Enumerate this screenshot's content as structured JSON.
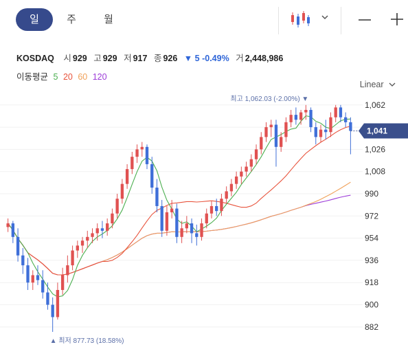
{
  "tabs": [
    {
      "label": "일"
    },
    {
      "label": "주"
    },
    {
      "label": "월"
    }
  ],
  "ticker": {
    "name": "KOSDAQ",
    "open_label": "시",
    "open": "929",
    "high_label": "고",
    "high": "929",
    "low_label": "저",
    "low": "917",
    "close_label": "종",
    "close": "926",
    "change_arrow": "▼",
    "change": "5",
    "change_pct": "-0.49%",
    "volume_label": "거",
    "volume": "2,448,986"
  },
  "moving_average": {
    "label": "이동평균",
    "periods": [
      {
        "label": "5",
        "color": "#4caf50"
      },
      {
        "label": "20",
        "color": "#e8533c"
      },
      {
        "label": "60",
        "color": "#f0a15a"
      },
      {
        "label": "120",
        "color": "#9c3bd8"
      }
    ]
  },
  "scale_label": "Linear",
  "icons": [
    "candlestick-icon",
    "chevron-down-icon",
    "minus-icon",
    "plus-icon"
  ],
  "chart_data": {
    "type": "candlestick",
    "y_ticks": [
      1062,
      1044,
      1026,
      1008,
      990,
      972,
      954,
      936,
      918,
      900,
      882
    ],
    "ylim": [
      873,
      1068
    ],
    "current_price_label": "1,041",
    "max_annotation": {
      "prefix": "최고",
      "value": "1,062.03",
      "pct": "(-2.00%)",
      "arrow": "▼"
    },
    "min_annotation": {
      "prefix": "최저",
      "value": "877.73",
      "pct": "(18.58%)",
      "arrow": "▲"
    },
    "up_color": "#e05151",
    "down_color": "#3f6fd8",
    "candles": [
      [
        963,
        970,
        959,
        966
      ],
      [
        966,
        968,
        950,
        955
      ],
      [
        955,
        962,
        935,
        940
      ],
      [
        940,
        946,
        925,
        932
      ],
      [
        932,
        938,
        912,
        918
      ],
      [
        918,
        928,
        912,
        924
      ],
      [
        924,
        932,
        916,
        920
      ],
      [
        920,
        928,
        905,
        910
      ],
      [
        910,
        918,
        896,
        900
      ],
      [
        900,
        906,
        878,
        890
      ],
      [
        890,
        918,
        888,
        912
      ],
      [
        912,
        930,
        908,
        924
      ],
      [
        924,
        940,
        918,
        932
      ],
      [
        932,
        948,
        928,
        944
      ],
      [
        944,
        952,
        938,
        948
      ],
      [
        948,
        955,
        942,
        952
      ],
      [
        952,
        960,
        946,
        955
      ],
      [
        955,
        962,
        950,
        958
      ],
      [
        958,
        966,
        952,
        962
      ],
      [
        962,
        968,
        954,
        960
      ],
      [
        960,
        970,
        956,
        966
      ],
      [
        966,
        978,
        962,
        974
      ],
      [
        974,
        990,
        970,
        986
      ],
      [
        986,
        1002,
        982,
        998
      ],
      [
        998,
        1014,
        994,
        1010
      ],
      [
        1010,
        1024,
        1006,
        1020
      ],
      [
        1020,
        1030,
        1015,
        1026
      ],
      [
        1026,
        1032,
        1020,
        1028
      ],
      [
        1028,
        1030,
        1010,
        1014
      ],
      [
        1014,
        1020,
        990,
        995
      ],
      [
        995,
        1002,
        975,
        980
      ],
      [
        980,
        985,
        955,
        960
      ],
      [
        960,
        980,
        956,
        975
      ],
      [
        975,
        985,
        970,
        978
      ],
      [
        978,
        982,
        950,
        955
      ],
      [
        955,
        968,
        950,
        962
      ],
      [
        962,
        972,
        958,
        966
      ],
      [
        966,
        970,
        950,
        958
      ],
      [
        958,
        965,
        948,
        955
      ],
      [
        955,
        970,
        952,
        966
      ],
      [
        966,
        978,
        962,
        974
      ],
      [
        974,
        984,
        970,
        980
      ],
      [
        980,
        986,
        972,
        976
      ],
      [
        976,
        990,
        972,
        986
      ],
      [
        986,
        996,
        982,
        992
      ],
      [
        992,
        1002,
        988,
        998
      ],
      [
        998,
        1008,
        994,
        1004
      ],
      [
        1004,
        1012,
        998,
        1008
      ],
      [
        1008,
        1016,
        1004,
        1012
      ],
      [
        1012,
        1022,
        1008,
        1018
      ],
      [
        1018,
        1030,
        1014,
        1026
      ],
      [
        1026,
        1040,
        1022,
        1036
      ],
      [
        1036,
        1048,
        1032,
        1044
      ],
      [
        1044,
        1050,
        1036,
        1046
      ],
      [
        1046,
        1050,
        1012,
        1028
      ],
      [
        1028,
        1040,
        1024,
        1036
      ],
      [
        1036,
        1052,
        1032,
        1048
      ],
      [
        1048,
        1058,
        1044,
        1054
      ],
      [
        1054,
        1060,
        1046,
        1050
      ],
      [
        1050,
        1058,
        1046,
        1056
      ],
      [
        1056,
        1062,
        1050,
        1058
      ],
      [
        1058,
        1060,
        1040,
        1044
      ],
      [
        1044,
        1048,
        1030,
        1036
      ],
      [
        1036,
        1046,
        1032,
        1042
      ],
      [
        1042,
        1050,
        1034,
        1040
      ],
      [
        1040,
        1056,
        1036,
        1052
      ],
      [
        1052,
        1062,
        1048,
        1060
      ],
      [
        1060,
        1062,
        1048,
        1052
      ],
      [
        1052,
        1056,
        1044,
        1048
      ],
      [
        1048,
        1052,
        1022,
        1041
      ]
    ]
  }
}
